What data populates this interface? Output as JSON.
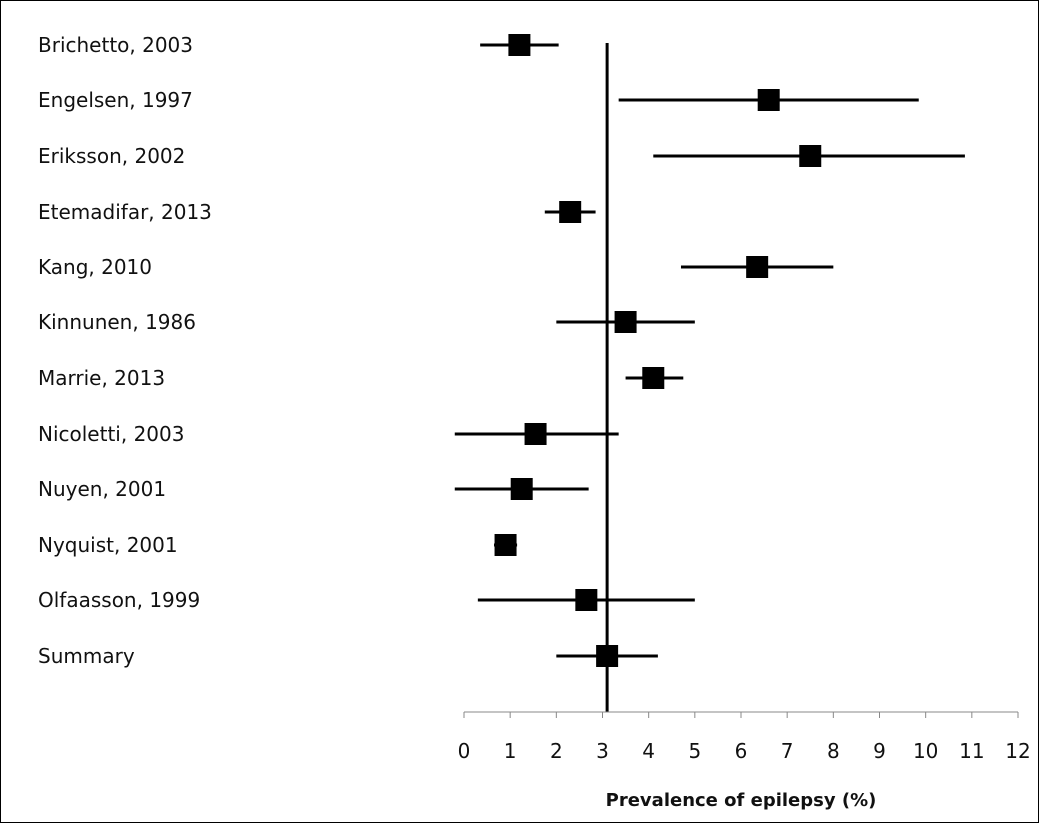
{
  "chart_data": {
    "type": "forest",
    "xlabel": "Prevalence of epilepsy (%)",
    "xlim": [
      0,
      12
    ],
    "xticks": [
      0,
      1,
      2,
      3,
      4,
      5,
      6,
      7,
      8,
      9,
      10,
      11,
      12
    ],
    "reference_line": 3.1,
    "grid": false,
    "studies": [
      {
        "label": "Brichetto, 2003",
        "estimate": 1.2,
        "lower": 0.35,
        "upper": 2.05
      },
      {
        "label": "Engelsen, 1997",
        "estimate": 6.6,
        "lower": 3.35,
        "upper": 9.85
      },
      {
        "label": "Eriksson, 2002",
        "estimate": 7.5,
        "lower": 4.1,
        "upper": 10.85
      },
      {
        "label": "Etemadifar, 2013",
        "estimate": 2.3,
        "lower": 1.75,
        "upper": 2.85
      },
      {
        "label": "Kang, 2010",
        "estimate": 6.35,
        "lower": 4.7,
        "upper": 8.0
      },
      {
        "label": "Kinnunen, 1986",
        "estimate": 3.5,
        "lower": 2.0,
        "upper": 5.0
      },
      {
        "label": "Marrie, 2013",
        "estimate": 4.1,
        "lower": 3.5,
        "upper": 4.75
      },
      {
        "label": "Nicoletti, 2003",
        "estimate": 1.55,
        "lower": -0.2,
        "upper": 3.35
      },
      {
        "label": "Nuyen, 2001",
        "estimate": 1.25,
        "lower": -0.2,
        "upper": 2.7
      },
      {
        "label": "Nyquist, 2001",
        "estimate": 0.9,
        "lower": 0.65,
        "upper": 1.15
      },
      {
        "label": "Olfaasson, 1999",
        "estimate": 2.65,
        "lower": 0.3,
        "upper": 5.0
      },
      {
        "label": "Summary",
        "estimate": 3.1,
        "lower": 2.0,
        "upper": 4.2
      }
    ]
  }
}
